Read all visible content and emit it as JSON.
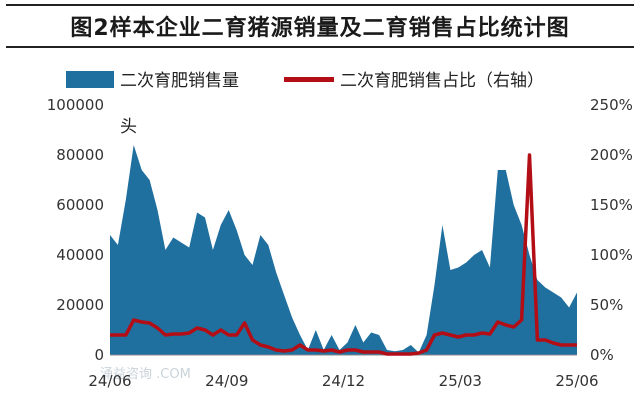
{
  "chart_data": {
    "type": "area",
    "title": "图2样本企业二育猪源销量及二育销售占比统计图",
    "annotation": "头",
    "watermark": "涌益咨询 .COM",
    "colors": {
      "area": "#1f6f9f",
      "line": "#b30d16"
    },
    "legend": [
      {
        "name": "二次育肥销售量",
        "kind": "area"
      },
      {
        "name": "二次育肥销售占比（右轴）",
        "kind": "line"
      }
    ],
    "x_labels": [
      "24/06",
      "24/09",
      "24/12",
      "25/03",
      "25/06"
    ],
    "y_left": {
      "min": 0,
      "max": 100000,
      "ticks": [
        "0",
        "20000",
        "40000",
        "60000",
        "80000",
        "100000"
      ]
    },
    "y_right": {
      "min": 0,
      "max": 2.5,
      "ticks": [
        "0%",
        "50%",
        "100%",
        "150%",
        "200%",
        "250%"
      ]
    },
    "series": [
      {
        "name": "二次育肥销售量",
        "axis": "left",
        "values": [
          48000,
          44000,
          62000,
          84000,
          74000,
          70000,
          58000,
          42000,
          47000,
          45000,
          43000,
          57000,
          55000,
          42000,
          52000,
          58000,
          50000,
          40000,
          36000,
          48000,
          44000,
          33000,
          24000,
          15000,
          8000,
          2000,
          10000,
          2000,
          8000,
          2000,
          5000,
          12000,
          5000,
          9000,
          8000,
          2000,
          1500,
          2000,
          4000,
          1000,
          8000,
          28000,
          52000,
          34000,
          35000,
          37000,
          40000,
          42000,
          35000,
          74000,
          74000,
          60000,
          52000,
          40000,
          30000,
          27000,
          25000,
          23000,
          19000,
          25000
        ]
      },
      {
        "name": "二次育肥销售占比",
        "axis": "right",
        "values": [
          0.2,
          0.2,
          0.2,
          0.35,
          0.33,
          0.32,
          0.27,
          0.2,
          0.21,
          0.21,
          0.22,
          0.27,
          0.25,
          0.2,
          0.25,
          0.2,
          0.2,
          0.32,
          0.15,
          0.1,
          0.08,
          0.05,
          0.04,
          0.05,
          0.1,
          0.05,
          0.05,
          0.04,
          0.05,
          0.03,
          0.05,
          0.05,
          0.03,
          0.03,
          0.03,
          0.01,
          0.01,
          0.01,
          0.01,
          0.02,
          0.05,
          0.2,
          0.22,
          0.2,
          0.18,
          0.2,
          0.2,
          0.22,
          0.21,
          0.33,
          0.3,
          0.28,
          0.35,
          2.0,
          0.15,
          0.15,
          0.12,
          0.1,
          0.1,
          0.1
        ]
      }
    ]
  }
}
